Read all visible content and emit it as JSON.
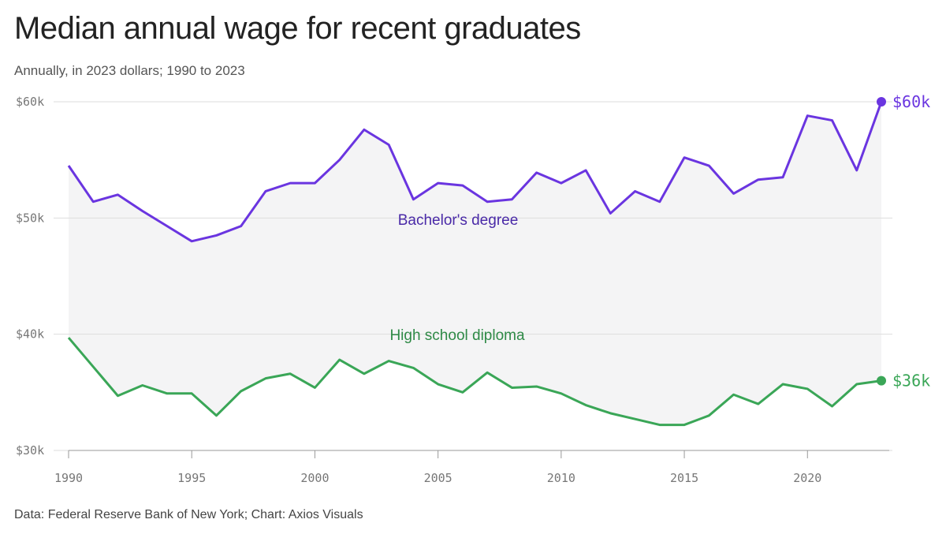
{
  "title": "Median annual wage for recent graduates",
  "subtitle": "Annually, in 2023 dollars; 1990 to 2023",
  "source": "Data: Federal Reserve Bank of New York; Chart: Axios Visuals",
  "colors": {
    "bachelors": "#6a35e0",
    "bachelors_label": "#4a2aa8",
    "highschool": "#3aa657",
    "highschool_label": "#2f8a47",
    "fill": "#f4f4f5",
    "grid": "#dddddd"
  },
  "chart_data": {
    "type": "line",
    "title": "Median annual wage for recent graduates",
    "xlabel": "",
    "ylabel": "",
    "xlim": [
      1990,
      2023
    ],
    "ylim": [
      30000,
      60000
    ],
    "yticks": [
      {
        "value": 30000,
        "label": "$30k"
      },
      {
        "value": 40000,
        "label": "$40k"
      },
      {
        "value": 50000,
        "label": "$50k"
      },
      {
        "value": 60000,
        "label": "$60k"
      }
    ],
    "xticks": [
      {
        "value": 1990,
        "label": "1990"
      },
      {
        "value": 1995,
        "label": "1995"
      },
      {
        "value": 2000,
        "label": "2000"
      },
      {
        "value": 2005,
        "label": "2005"
      },
      {
        "value": 2010,
        "label": "2010"
      },
      {
        "value": 2015,
        "label": "2015"
      },
      {
        "value": 2020,
        "label": "2020"
      }
    ],
    "x": [
      1990,
      1991,
      1992,
      1993,
      1994,
      1995,
      1996,
      1997,
      1998,
      1999,
      2000,
      2001,
      2002,
      2003,
      2004,
      2005,
      2006,
      2007,
      2008,
      2009,
      2010,
      2011,
      2012,
      2013,
      2014,
      2015,
      2016,
      2017,
      2018,
      2019,
      2020,
      2021,
      2022,
      2023
    ],
    "series": [
      {
        "name": "Bachelor's degree",
        "end_label": "$60k",
        "values": [
          54500,
          51400,
          52000,
          50600,
          49300,
          48000,
          48500,
          49300,
          52300,
          53000,
          53000,
          55000,
          57600,
          56300,
          51600,
          53000,
          52800,
          51400,
          51600,
          53900,
          53000,
          54100,
          50400,
          52300,
          51400,
          55200,
          54500,
          52100,
          53300,
          53500,
          58800,
          58400,
          54100,
          60000
        ]
      },
      {
        "name": "High school diploma",
        "end_label": "$36k",
        "values": [
          39700,
          37200,
          34700,
          35600,
          34900,
          34900,
          33000,
          35100,
          36200,
          36600,
          35400,
          37800,
          36600,
          37700,
          37100,
          35700,
          35000,
          36700,
          35400,
          35500,
          34900,
          33900,
          33200,
          32700,
          32200,
          32200,
          33000,
          34800,
          34000,
          35700,
          35300,
          33800,
          35700,
          36000
        ]
      }
    ]
  }
}
